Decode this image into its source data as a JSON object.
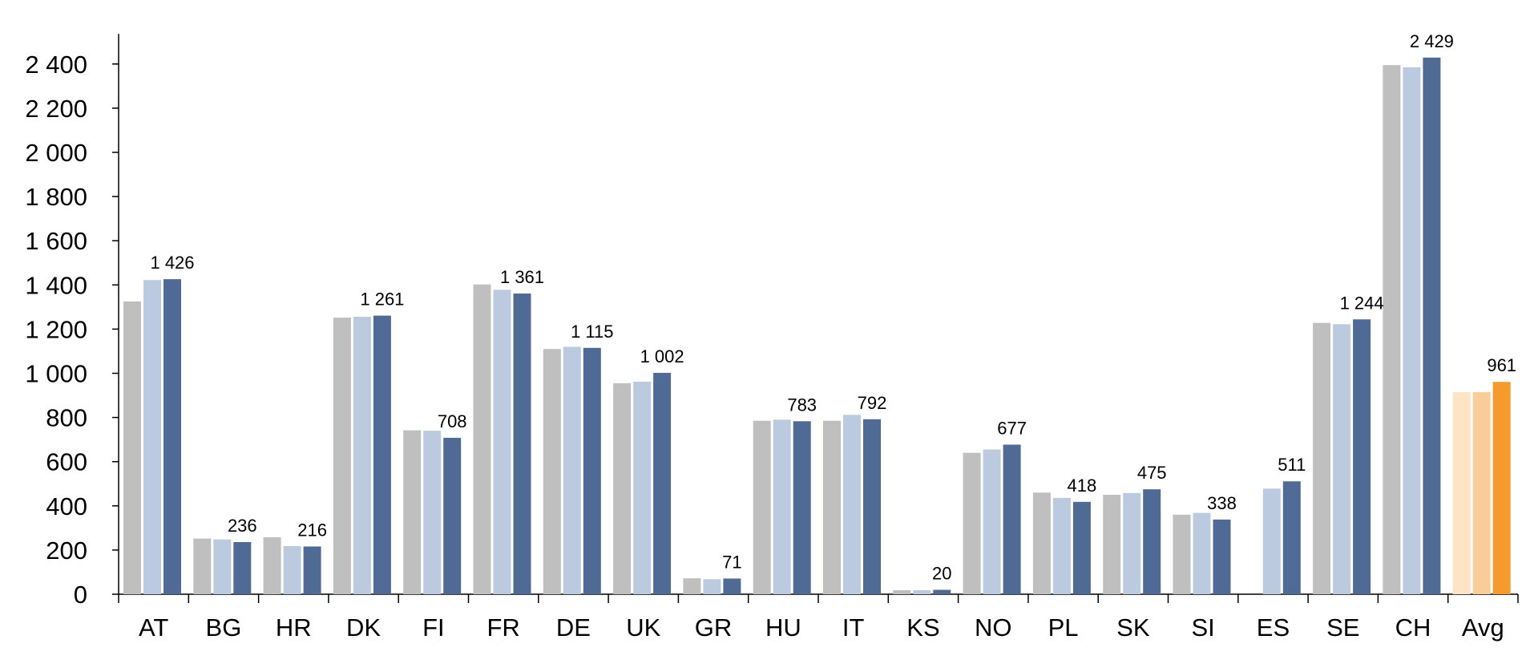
{
  "chart_data": {
    "type": "bar",
    "title": "",
    "xlabel": "",
    "ylabel": "",
    "ylim": [
      0,
      2500
    ],
    "yticks": [
      0,
      200,
      400,
      600,
      800,
      1000,
      1200,
      1400,
      1600,
      1800,
      2000,
      2200,
      2400
    ],
    "ytick_labels": [
      "0",
      "200",
      "400",
      "600",
      "800",
      "1 000",
      "1 200",
      "1 400",
      "1 600",
      "1 800",
      "2 000",
      "2 200",
      "2 400"
    ],
    "grid": false,
    "legend": "none",
    "categories": [
      "AT",
      "BG",
      "HR",
      "DK",
      "FI",
      "FR",
      "DE",
      "UK",
      "GR",
      "HU",
      "IT",
      "KS",
      "NO",
      "PL",
      "SK",
      "SI",
      "ES",
      "SE",
      "CH",
      "Avg"
    ],
    "series": [
      {
        "color": "#bfbfbf",
        "highlight_color": "#fce4c4",
        "values": [
          1325,
          252,
          258,
          1252,
          742,
          1402,
          1110,
          955,
          72,
          785,
          785,
          18,
          640,
          460,
          450,
          360,
          null,
          1228,
          2395,
          915
        ]
      },
      {
        "color": "#bccadf",
        "highlight_color": "#f9cd98",
        "values": [
          1422,
          248,
          218,
          1256,
          740,
          1378,
          1120,
          962,
          68,
          790,
          812,
          18,
          655,
          436,
          458,
          368,
          478,
          1222,
          2385,
          915
        ]
      },
      {
        "color": "#506a96",
        "highlight_color": "#f79a2e",
        "values": [
          1426,
          236,
          216,
          1261,
          708,
          1361,
          1115,
          1002,
          71,
          783,
          792,
          20,
          677,
          418,
          475,
          338,
          511,
          1244,
          2429,
          961
        ]
      }
    ],
    "data_labels": [
      "1 426",
      "236",
      "216",
      "1 261",
      "708",
      "1 361",
      "1 115",
      "1 002",
      "71",
      "783",
      "792",
      "20",
      "677",
      "418",
      "475",
      "338",
      "511",
      "1 244",
      "2 429",
      "961"
    ],
    "highlight_category": "Avg",
    "axis_color": "#000000"
  }
}
